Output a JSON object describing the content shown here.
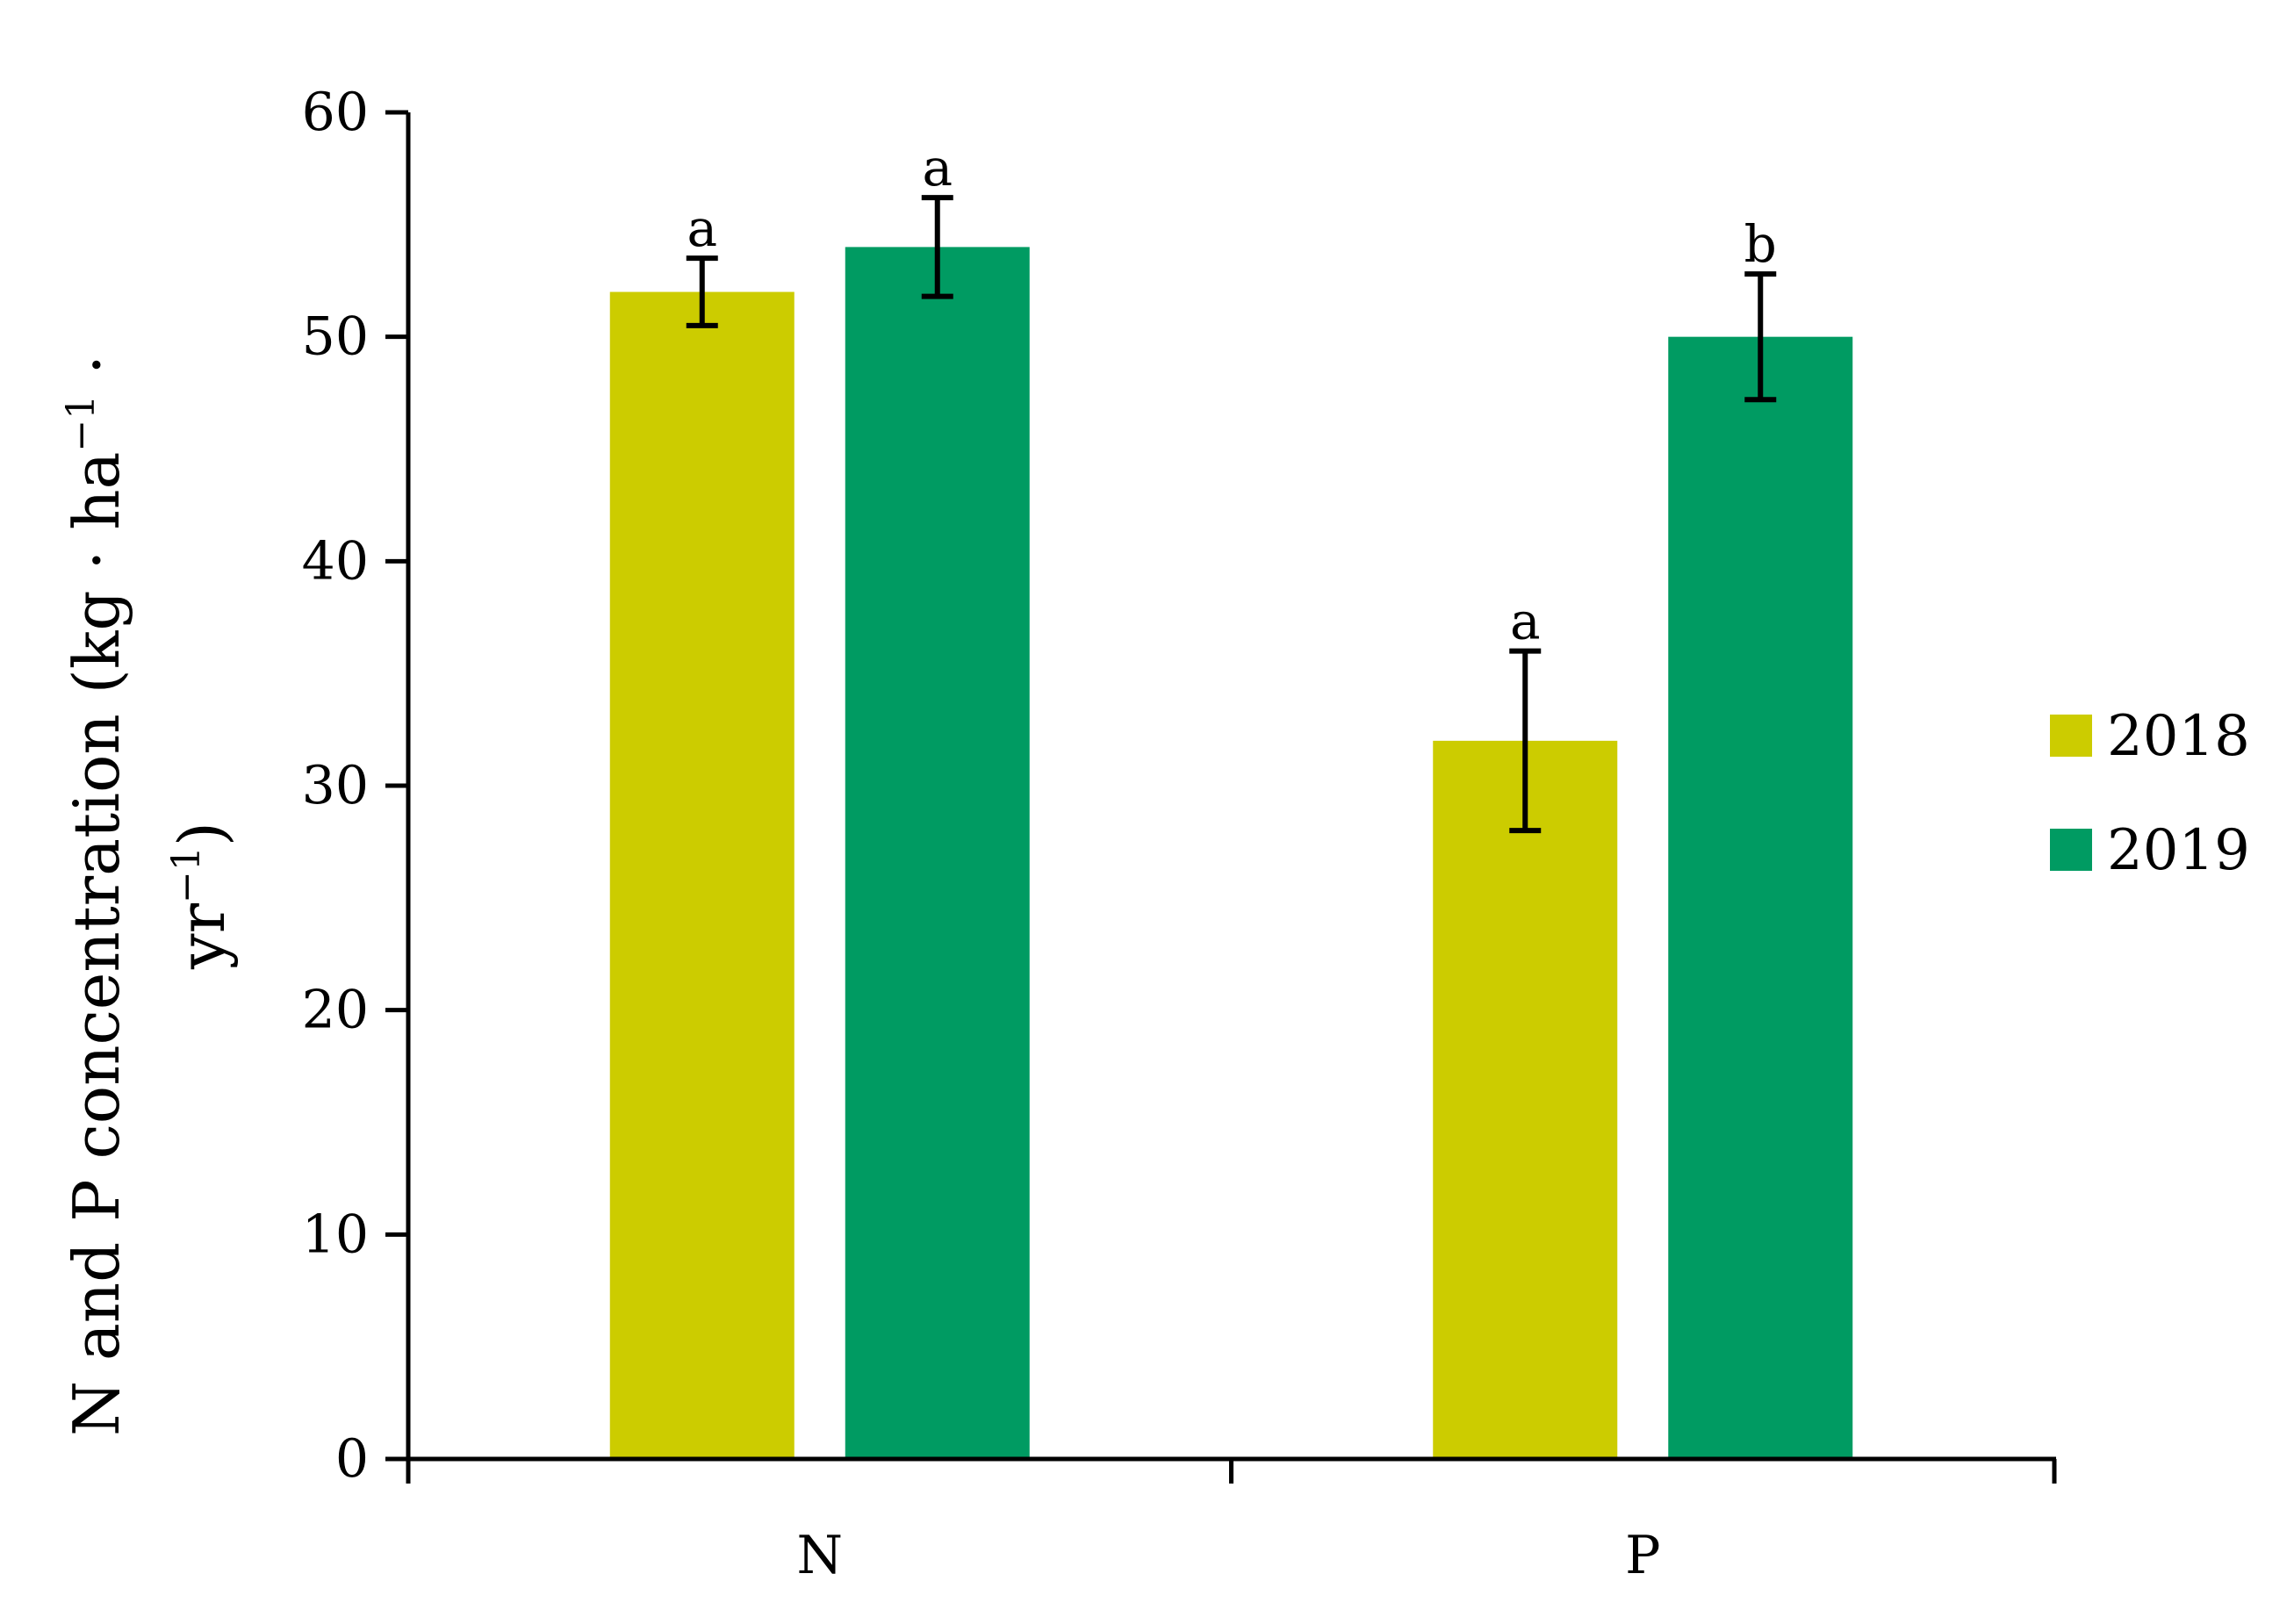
{
  "chart_data": {
    "type": "bar",
    "categories": [
      "N",
      "P"
    ],
    "series": [
      {
        "name": "2018",
        "color": "#cccc00",
        "values": [
          52,
          32
        ],
        "errors": [
          1.5,
          4
        ],
        "letters": [
          "a",
          "a"
        ]
      },
      {
        "name": "2019",
        "color": "#009b62",
        "values": [
          54,
          50
        ],
        "errors": [
          2.2,
          2.8
        ],
        "letters": [
          "a",
          "b"
        ]
      }
    ],
    "ylim": [
      0,
      60
    ],
    "yticks": [
      "0",
      "10",
      "20",
      "30",
      "40",
      "50",
      "60"
    ],
    "ylabel_line1": "N and P concentration (kg · ha",
    "ylabel_sup1": "−1",
    "ylabel_line1_end": " ·",
    "ylabel_line2": "yr",
    "ylabel_sup2": "−1",
    "ylabel_line2_end": ")",
    "xlabel": "",
    "grid": false,
    "legend_position": "right"
  }
}
